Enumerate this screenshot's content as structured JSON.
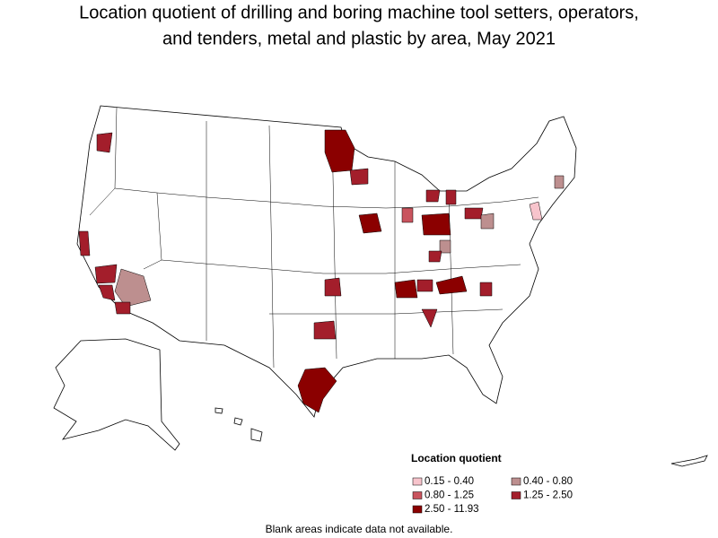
{
  "title_lines": [
    "Location quotient of drilling and boring machine tool setters, operators,",
    "and tenders, metal and plastic by area, May 2021"
  ],
  "legend": {
    "title": "Location quotient",
    "items": [
      {
        "label": "0.15 - 0.40",
        "color": "#f7c4cc"
      },
      {
        "label": "0.40 - 0.80",
        "color": "#bd8f8f"
      },
      {
        "label": "0.80 - 1.25",
        "color": "#c9545e"
      },
      {
        "label": "1.25 - 2.50",
        "color": "#a31e2b"
      },
      {
        "label": "2.50 - 11.93",
        "color": "#8b0000"
      }
    ]
  },
  "note": "Blank areas indicate data not available."
}
